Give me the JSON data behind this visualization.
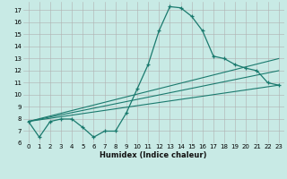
{
  "title": "",
  "xlabel": "Humidex (Indice chaleur)",
  "background_color": "#c8eae5",
  "grid_color": "#b0b0b0",
  "line_color": "#1a7a6e",
  "xlim": [
    -0.5,
    23.5
  ],
  "ylim": [
    6,
    17.7
  ],
  "xticks": [
    0,
    1,
    2,
    3,
    4,
    5,
    6,
    7,
    8,
    9,
    10,
    11,
    12,
    13,
    14,
    15,
    16,
    17,
    18,
    19,
    20,
    21,
    22,
    23
  ],
  "yticks": [
    6,
    7,
    8,
    9,
    10,
    11,
    12,
    13,
    14,
    15,
    16,
    17
  ],
  "curve1_x": [
    0,
    1,
    2,
    3,
    4,
    5,
    6,
    7,
    8,
    9,
    10,
    11,
    12,
    13,
    14,
    15,
    16,
    17,
    18,
    19,
    20,
    21,
    22,
    23
  ],
  "curve1_y": [
    7.8,
    6.5,
    7.8,
    8.0,
    8.0,
    7.3,
    6.5,
    7.0,
    7.0,
    8.5,
    10.5,
    12.5,
    15.3,
    17.3,
    17.2,
    16.5,
    15.3,
    13.2,
    13.0,
    12.5,
    12.2,
    12.0,
    11.0,
    10.8
  ],
  "line1_x": [
    0,
    23
  ],
  "line1_y": [
    7.8,
    10.8
  ],
  "line2_x": [
    0,
    23
  ],
  "line2_y": [
    7.8,
    12.0
  ],
  "line3_x": [
    0,
    23
  ],
  "line3_y": [
    7.8,
    13.0
  ]
}
